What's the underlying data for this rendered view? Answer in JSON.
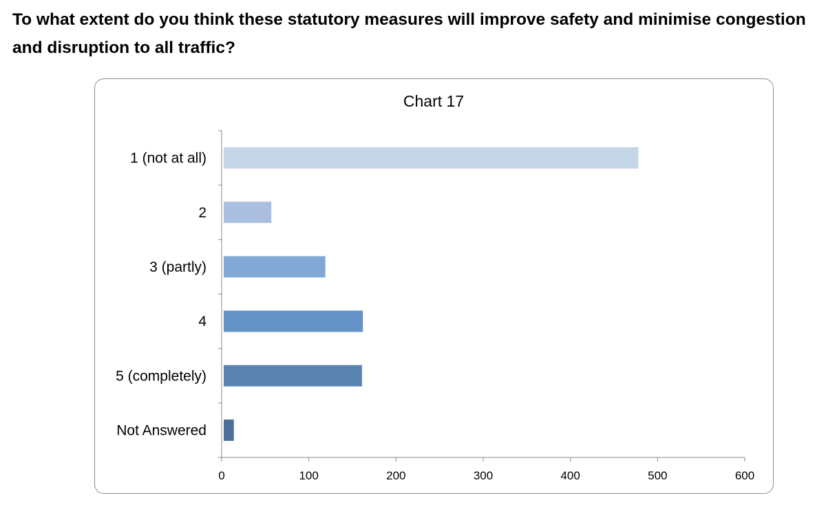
{
  "question": "To what extent do you think these statutory measures will improve safety and minimise congestion and disruption to all traffic?",
  "chart_data": {
    "type": "bar",
    "orientation": "horizontal",
    "title": "Chart 17",
    "xlabel": "",
    "ylabel": "",
    "categories": [
      "1 (not at all)",
      "2",
      "3 (partly)",
      "4",
      "5 (completely)",
      "Not Answered"
    ],
    "values": [
      478,
      57,
      119,
      162,
      161,
      14
    ],
    "xlim": [
      0,
      600
    ],
    "xticks": [
      0,
      100,
      200,
      300,
      400,
      500,
      600
    ],
    "grid": false,
    "legend": "none",
    "colors": [
      "#c5d5e8",
      "#aabfe0",
      "#82a9d6",
      "#6592c7",
      "#5a83b2",
      "#4a6f9b"
    ]
  }
}
